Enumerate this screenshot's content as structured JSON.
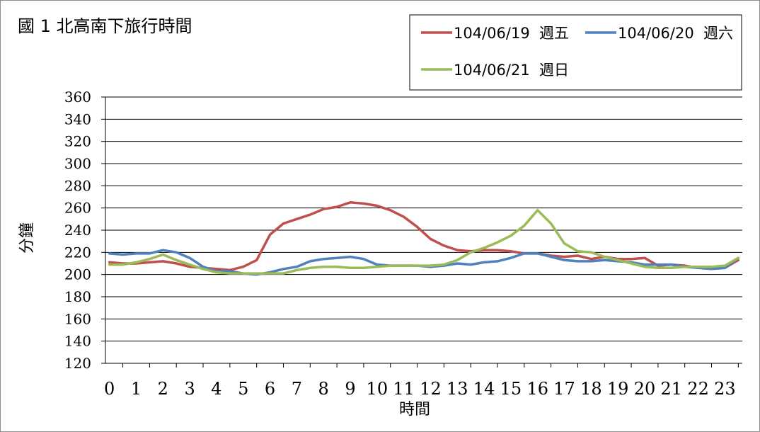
{
  "chart_data": {
    "type": "line",
    "title": "國 1 北高南下旅行時間",
    "xlabel": "時間",
    "ylabel": "分鐘",
    "ylim": [
      120,
      360
    ],
    "yticks": [
      120,
      140,
      160,
      180,
      200,
      220,
      240,
      260,
      280,
      300,
      320,
      340,
      360
    ],
    "categories": [
      "0",
      "1",
      "2",
      "3",
      "4",
      "5",
      "6",
      "7",
      "8",
      "9",
      "10",
      "11",
      "12",
      "13",
      "14",
      "15",
      "16",
      "17",
      "18",
      "19",
      "20",
      "21",
      "22",
      "23"
    ],
    "x": [
      0,
      0.5,
      1,
      1.5,
      2,
      2.5,
      3,
      3.5,
      4,
      4.5,
      5,
      5.5,
      6,
      6.5,
      7,
      7.5,
      8,
      8.5,
      9,
      9.5,
      10,
      10.5,
      11,
      11.5,
      12,
      12.5,
      13,
      13.5,
      14,
      14.5,
      15,
      15.5,
      16,
      16.5,
      17,
      17.5,
      18,
      18.5,
      19,
      19.5,
      20,
      20.5,
      21,
      21.5,
      22,
      22.5,
      23,
      23.5
    ],
    "grid": true,
    "legend_position": "top-right",
    "series": [
      {
        "name": "104/06/19  週五",
        "color": "#c0504d",
        "values": [
          211,
          210,
          210,
          211,
          212,
          210,
          207,
          206,
          205,
          204,
          207,
          213,
          236,
          246,
          250,
          254,
          259,
          261,
          265,
          264,
          262,
          258,
          252,
          243,
          232,
          226,
          222,
          221,
          222,
          222,
          221,
          219,
          219,
          217,
          216,
          217,
          214,
          216,
          214,
          214,
          215,
          208,
          209,
          208,
          206,
          207,
          206,
          213
        ]
      },
      {
        "name": "104/06/20  週六",
        "color": "#4f81bd",
        "values": [
          219,
          218,
          219,
          219,
          222,
          220,
          215,
          207,
          203,
          203,
          201,
          200,
          202,
          205,
          207,
          212,
          214,
          215,
          216,
          214,
          209,
          208,
          208,
          208,
          207,
          208,
          210,
          209,
          211,
          212,
          215,
          219,
          219,
          216,
          213,
          212,
          212,
          213,
          212,
          211,
          209,
          209,
          209,
          207,
          206,
          205,
          206,
          215
        ]
      },
      {
        "name": "104/06/21  週日",
        "color": "#9bbb59",
        "values": [
          209,
          209,
          211,
          214,
          218,
          213,
          209,
          205,
          202,
          201,
          201,
          201,
          201,
          201,
          204,
          206,
          207,
          207,
          206,
          206,
          207,
          208,
          208,
          208,
          208,
          209,
          213,
          220,
          224,
          229,
          235,
          244,
          258,
          246,
          228,
          221,
          220,
          216,
          213,
          210,
          207,
          206,
          206,
          207,
          207,
          207,
          208,
          215
        ]
      }
    ]
  }
}
